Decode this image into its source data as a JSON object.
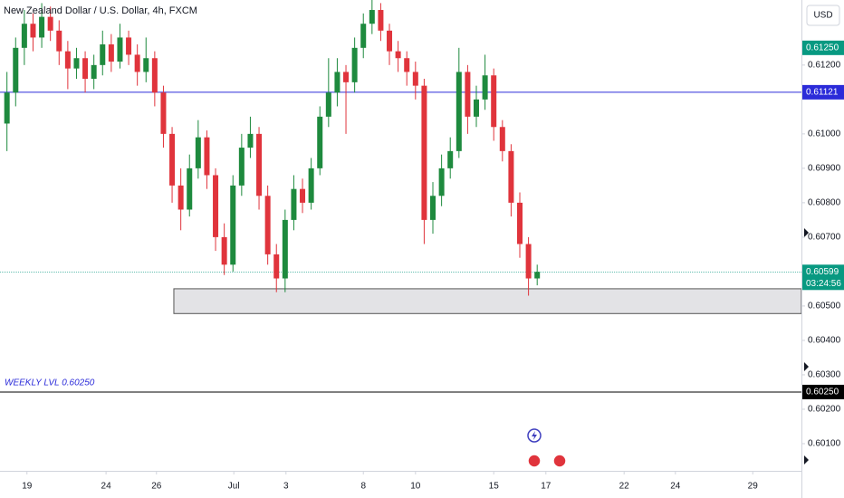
{
  "chart_data": {
    "type": "candlestick",
    "title": "New Zealand Dollar / U.S. Dollar, 4h, FXCM",
    "currency": "USD",
    "up_color": "#1e8a3e",
    "down_color": "#e0343c",
    "open": [
      0.6103,
      0.6112,
      0.6125,
      0.6132,
      0.6128,
      0.6134,
      0.613,
      0.6124,
      0.6119,
      0.6122,
      0.6116,
      0.612,
      0.6126,
      0.6121,
      0.6128,
      0.6123,
      0.6118,
      0.6122,
      0.6112,
      0.61,
      0.6085,
      0.6078,
      0.609,
      0.6099,
      0.6088,
      0.607,
      0.6062,
      0.6085,
      0.6096,
      0.61,
      0.6082,
      0.6065,
      0.6058,
      0.6075,
      0.6084,
      0.608,
      0.609,
      0.6105,
      0.6112,
      0.6118,
      0.6115,
      0.6125,
      0.6132,
      0.6136,
      0.613,
      0.6124,
      0.6122,
      0.6118,
      0.6114,
      0.6075,
      0.6082,
      0.609,
      0.6095,
      0.6118,
      0.6105,
      0.611,
      0.6117,
      0.6102,
      0.6095,
      0.608,
      0.6068,
      0.6058
    ],
    "high": [
      0.6118,
      0.6128,
      0.6136,
      0.6135,
      0.6138,
      0.6137,
      0.6133,
      0.6127,
      0.6125,
      0.6124,
      0.6123,
      0.613,
      0.6129,
      0.6132,
      0.613,
      0.6126,
      0.6128,
      0.6124,
      0.6114,
      0.6102,
      0.609,
      0.6094,
      0.6104,
      0.6101,
      0.609,
      0.6074,
      0.6088,
      0.61,
      0.6105,
      0.6102,
      0.6085,
      0.6068,
      0.6078,
      0.6088,
      0.6087,
      0.6093,
      0.6108,
      0.6122,
      0.6122,
      0.612,
      0.6128,
      0.6135,
      0.6139,
      0.6138,
      0.6132,
      0.6127,
      0.6124,
      0.6121,
      0.6116,
      0.6086,
      0.6094,
      0.6099,
      0.6125,
      0.612,
      0.6114,
      0.6123,
      0.6119,
      0.6104,
      0.6097,
      0.6083,
      0.607,
      0.6062
    ],
    "low": [
      0.6095,
      0.6108,
      0.612,
      0.6124,
      0.6125,
      0.6127,
      0.612,
      0.6113,
      0.6116,
      0.6112,
      0.6113,
      0.6117,
      0.6118,
      0.6119,
      0.612,
      0.6114,
      0.6115,
      0.6108,
      0.6096,
      0.608,
      0.6072,
      0.6076,
      0.6087,
      0.6084,
      0.6066,
      0.6059,
      0.606,
      0.6082,
      0.6093,
      0.6078,
      0.6062,
      0.6054,
      0.6054,
      0.6072,
      0.6077,
      0.6078,
      0.6088,
      0.6102,
      0.6108,
      0.61,
      0.6112,
      0.6122,
      0.6129,
      0.6127,
      0.612,
      0.6118,
      0.6114,
      0.611,
      0.6068,
      0.6071,
      0.6079,
      0.6087,
      0.6093,
      0.61,
      0.6102,
      0.6107,
      0.6098,
      0.6092,
      0.6076,
      0.6064,
      0.6053,
      0.6056
    ],
    "close": [
      0.6112,
      0.6125,
      0.6132,
      0.6128,
      0.6134,
      0.613,
      0.6124,
      0.6119,
      0.6122,
      0.6116,
      0.612,
      0.6126,
      0.6121,
      0.6128,
      0.6123,
      0.6118,
      0.6122,
      0.6112,
      0.61,
      0.6085,
      0.6078,
      0.609,
      0.6099,
      0.6088,
      0.607,
      0.6062,
      0.6085,
      0.6096,
      0.61,
      0.6082,
      0.6065,
      0.6058,
      0.6075,
      0.6084,
      0.608,
      0.609,
      0.6105,
      0.6112,
      0.6118,
      0.6115,
      0.6125,
      0.6132,
      0.6136,
      0.613,
      0.6124,
      0.6122,
      0.6118,
      0.6114,
      0.6075,
      0.6082,
      0.609,
      0.6095,
      0.6118,
      0.6105,
      0.611,
      0.6117,
      0.6102,
      0.6095,
      0.608,
      0.6068,
      0.6058,
      0.60599
    ],
    "xlim": [
      -0.8,
      91.4
    ],
    "ylim": [
      0.60021,
      0.61389
    ],
    "xticks": [
      {
        "value": 2.3,
        "label": "19"
      },
      {
        "value": 11.4,
        "label": "24"
      },
      {
        "value": 17.2,
        "label": "26"
      },
      {
        "value": 26.1,
        "label": "Jul"
      },
      {
        "value": 32.1,
        "label": "3"
      },
      {
        "value": 41,
        "label": "8"
      },
      {
        "value": 47,
        "label": "10"
      },
      {
        "value": 56,
        "label": "15"
      },
      {
        "value": 62,
        "label": "17"
      },
      {
        "value": 71,
        "label": "22"
      },
      {
        "value": 76.9,
        "label": "24"
      },
      {
        "value": 85.8,
        "label": "29"
      }
    ],
    "yticks": [
      {
        "value": 0.612,
        "label": "0.61200"
      },
      {
        "value": 0.61,
        "label": "0.61000"
      },
      {
        "value": 0.609,
        "label": "0.60900"
      },
      {
        "value": 0.608,
        "label": "0.60800"
      },
      {
        "value": 0.607,
        "label": "0.60700"
      },
      {
        "value": 0.605,
        "label": "0.60500"
      },
      {
        "value": 0.604,
        "label": "0.60400"
      },
      {
        "value": 0.603,
        "label": "0.60300"
      },
      {
        "value": 0.602,
        "label": "0.60200"
      },
      {
        "value": 0.601,
        "label": "0.60100"
      }
    ],
    "zone": {
      "top": 0.6055,
      "bottom": 0.60478,
      "start": 19.2
    },
    "price_lines": [
      {
        "value": 0.6125,
        "label": "0.61250",
        "color": "#089981",
        "line": false
      },
      {
        "value": 0.61121,
        "label": "0.61121",
        "color": "#2b2bd9",
        "line": true
      },
      {
        "value": 0.60599,
        "label": "0.60599",
        "color": "#089981",
        "line": true,
        "countdown": "03:24:56"
      },
      {
        "value": 0.6025,
        "label": "0.60250",
        "color": "#000000",
        "line": true
      }
    ],
    "annotation": {
      "text": "WEEKLY LVL 0.60250",
      "value": 0.6025
    }
  }
}
